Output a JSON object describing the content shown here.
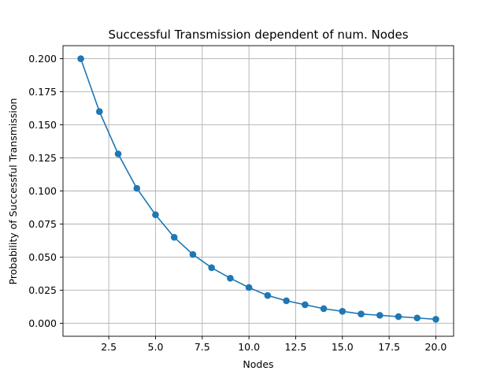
{
  "chart_data": {
    "type": "line",
    "title": "Successful Transmission dependent of num. Nodes",
    "xlabel": "Nodes",
    "ylabel": "Probability of Successful Transmission",
    "xlim": [
      0.05,
      20.95
    ],
    "ylim": [
      -0.00985,
      0.20985
    ],
    "grid": true,
    "x_ticks": [
      2.5,
      5.0,
      7.5,
      10.0,
      12.5,
      15.0,
      17.5,
      20.0
    ],
    "x_tick_labels": [
      "2.5",
      "5.0",
      "7.5",
      "10.0",
      "12.5",
      "15.0",
      "17.5",
      "20.0"
    ],
    "y_ticks": [
      0.0,
      0.025,
      0.05,
      0.075,
      0.1,
      0.125,
      0.15,
      0.175,
      0.2
    ],
    "y_tick_labels": [
      "0.000",
      "0.025",
      "0.050",
      "0.075",
      "0.100",
      "0.125",
      "0.150",
      "0.175",
      "0.200"
    ],
    "series": [
      {
        "color": "#1f77b4",
        "marker": "circle",
        "x": [
          1,
          2,
          3,
          4,
          5,
          6,
          7,
          8,
          9,
          10,
          11,
          12,
          13,
          14,
          15,
          16,
          17,
          18,
          19,
          20
        ],
        "y": [
          0.2,
          0.16,
          0.128,
          0.102,
          0.082,
          0.065,
          0.052,
          0.042,
          0.034,
          0.027,
          0.021,
          0.017,
          0.014,
          0.011,
          0.009,
          0.007,
          0.006,
          0.005,
          0.004,
          0.003
        ]
      }
    ]
  }
}
